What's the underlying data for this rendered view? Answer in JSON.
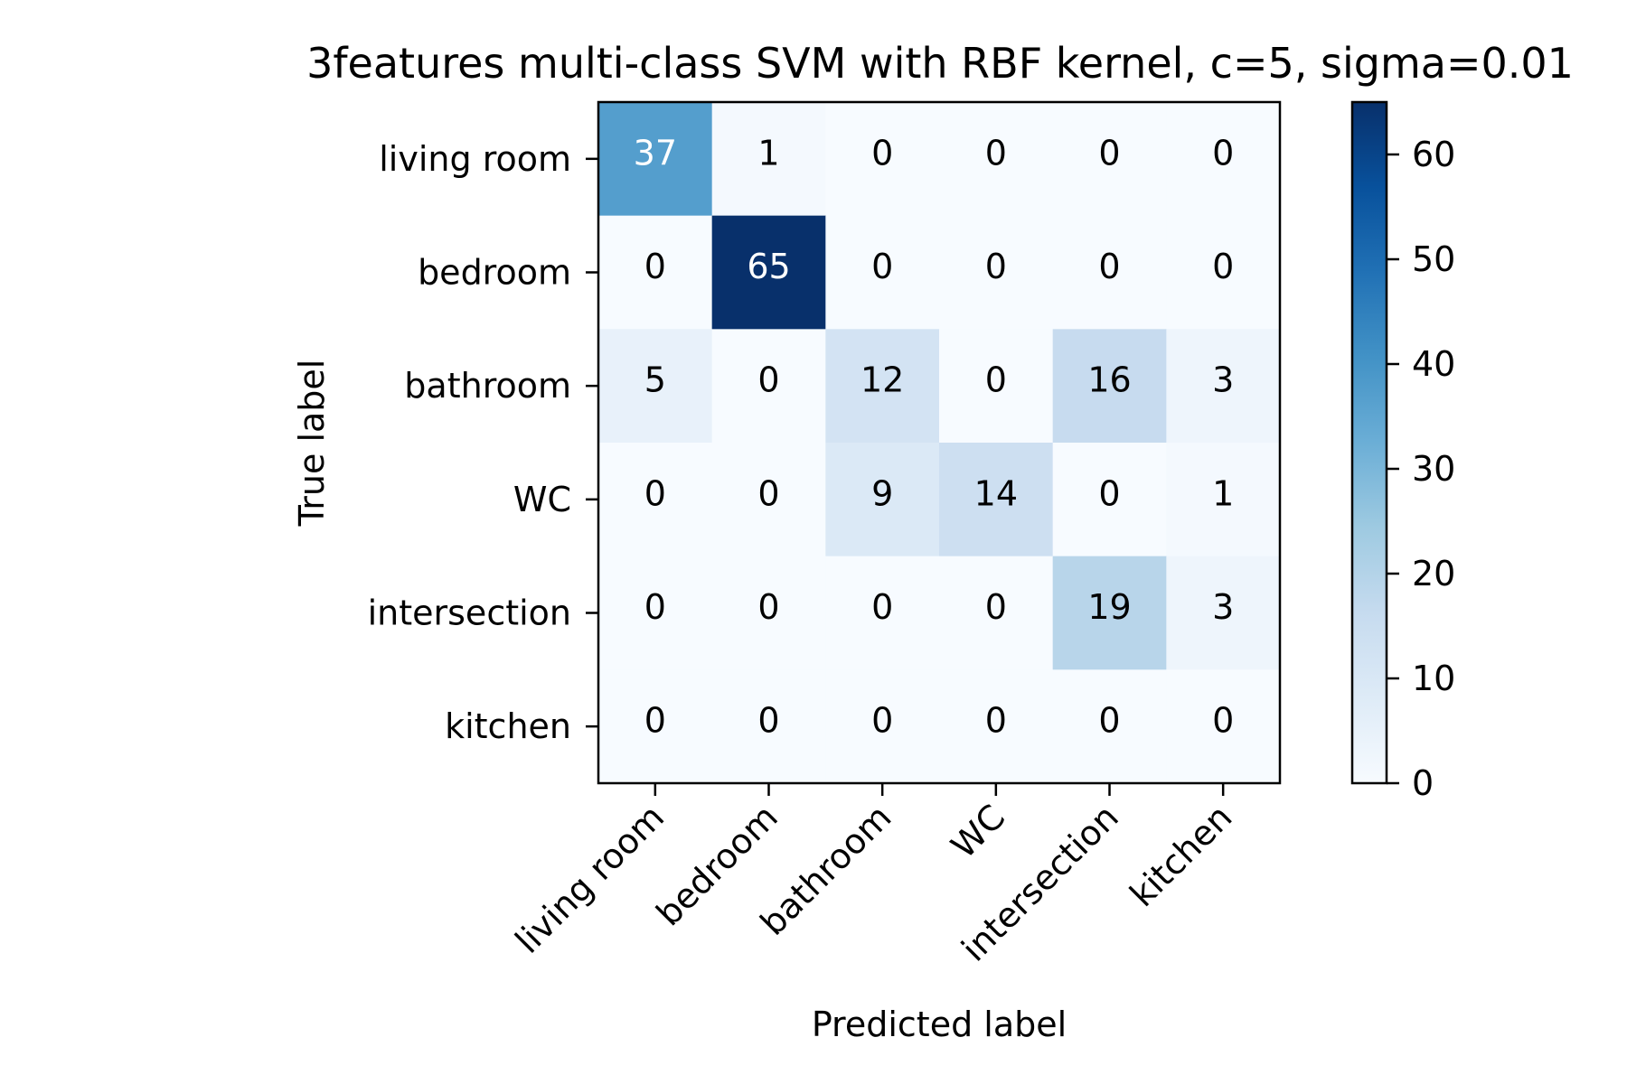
{
  "chart_data": {
    "type": "heatmap",
    "title": "3features multi-class SVM with RBF kernel, c=5, sigma=0.01",
    "xlabel": "Predicted label",
    "ylabel": "True label",
    "x_categories": [
      "living room",
      "bedroom",
      "bathroom",
      "WC",
      "intersection",
      "kitchen"
    ],
    "y_categories": [
      "living room",
      "bedroom",
      "bathroom",
      "WC",
      "intersection",
      "kitchen"
    ],
    "matrix": [
      [
        37,
        1,
        0,
        0,
        0,
        0
      ],
      [
        0,
        65,
        0,
        0,
        0,
        0
      ],
      [
        5,
        0,
        12,
        0,
        16,
        3
      ],
      [
        0,
        0,
        9,
        14,
        0,
        1
      ],
      [
        0,
        0,
        0,
        0,
        19,
        3
      ],
      [
        0,
        0,
        0,
        0,
        0,
        0
      ]
    ],
    "colormap": "Blues",
    "colorbar": {
      "range": [
        0,
        65
      ],
      "ticks": [
        "0",
        "10",
        "20",
        "30",
        "40",
        "50",
        "60"
      ]
    },
    "grid": false
  }
}
